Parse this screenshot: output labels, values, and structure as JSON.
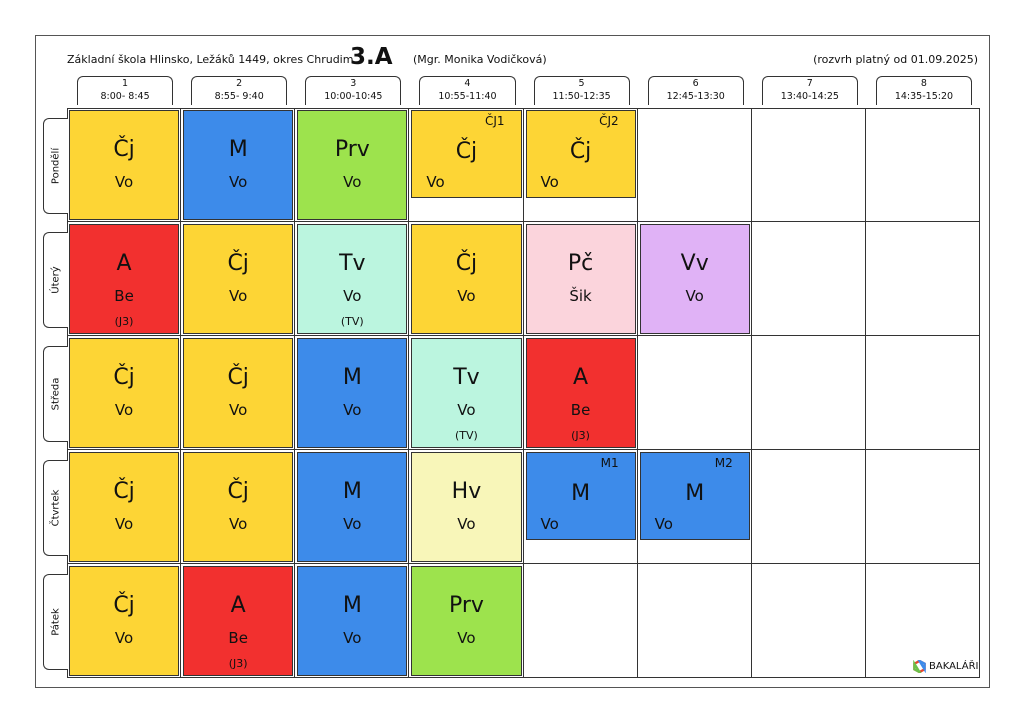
{
  "header": {
    "school": "Základní škola Hlinsko, Ležáků 1449, okres Chrudim",
    "class": "3.A",
    "teacher": "(Mgr. Monika Vodičková)",
    "validity": "(rozvrh platný od 01.09.2025)"
  },
  "periods": [
    {
      "number": "1",
      "time": "8:00- 8:45"
    },
    {
      "number": "2",
      "time": "8:55- 9:40"
    },
    {
      "number": "3",
      "time": "10:00-10:45"
    },
    {
      "number": "4",
      "time": "10:55-11:40"
    },
    {
      "number": "5",
      "time": "11:50-12:35"
    },
    {
      "number": "6",
      "time": "12:45-13:30"
    },
    {
      "number": "7",
      "time": "13:40-14:25"
    },
    {
      "number": "8",
      "time": "14:35-15:20"
    }
  ],
  "days": [
    {
      "name": "Pondělí",
      "lessons": [
        {
          "subject": "Čj",
          "teacher": "Vo",
          "color": "#fdd535"
        },
        {
          "subject": "M",
          "teacher": "Vo",
          "color": "#3d8bea"
        },
        {
          "subject": "Prv",
          "teacher": "Vo",
          "color": "#9de34d"
        },
        {
          "subject": "Čj",
          "teacher": "Vo",
          "group": "ČJ1",
          "color": "#fdd535"
        },
        {
          "subject": "Čj",
          "teacher": "Vo",
          "group": "ČJ2",
          "color": "#fdd535"
        },
        null,
        null,
        null
      ]
    },
    {
      "name": "Úterý",
      "lessons": [
        {
          "subject": "A",
          "teacher": "Be",
          "room": "(J3)",
          "color": "#f2302f"
        },
        {
          "subject": "Čj",
          "teacher": "Vo",
          "color": "#fdd535"
        },
        {
          "subject": "Tv",
          "teacher": "Vo",
          "room": "(TV)",
          "color": "#bbf5df"
        },
        {
          "subject": "Čj",
          "teacher": "Vo",
          "color": "#fdd535"
        },
        {
          "subject": "Pč",
          "teacher": "Šik",
          "color": "#fbd4dc"
        },
        {
          "subject": "Vv",
          "teacher": "Vo",
          "color": "#e0b2f6"
        },
        null,
        null
      ]
    },
    {
      "name": "Středa",
      "lessons": [
        {
          "subject": "Čj",
          "teacher": "Vo",
          "color": "#fdd535"
        },
        {
          "subject": "Čj",
          "teacher": "Vo",
          "color": "#fdd535"
        },
        {
          "subject": "M",
          "teacher": "Vo",
          "color": "#3d8bea"
        },
        {
          "subject": "Tv",
          "teacher": "Vo",
          "room": "(TV)",
          "color": "#bbf5df"
        },
        {
          "subject": "A",
          "teacher": "Be",
          "room": "(J3)",
          "color": "#f2302f"
        },
        null,
        null,
        null
      ]
    },
    {
      "name": "Čtvrtek",
      "lessons": [
        {
          "subject": "Čj",
          "teacher": "Vo",
          "color": "#fdd535"
        },
        {
          "subject": "Čj",
          "teacher": "Vo",
          "color": "#fdd535"
        },
        {
          "subject": "M",
          "teacher": "Vo",
          "color": "#3d8bea"
        },
        {
          "subject": "Hv",
          "teacher": "Vo",
          "color": "#f8f6b9"
        },
        {
          "subject": "M",
          "teacher": "Vo",
          "group": "M1",
          "color": "#3d8bea"
        },
        {
          "subject": "M",
          "teacher": "Vo",
          "group": "M2",
          "color": "#3d8bea"
        },
        null,
        null
      ]
    },
    {
      "name": "Pátek",
      "lessons": [
        {
          "subject": "Čj",
          "teacher": "Vo",
          "color": "#fdd535"
        },
        {
          "subject": "A",
          "teacher": "Be",
          "room": "(J3)",
          "color": "#f2302f"
        },
        {
          "subject": "M",
          "teacher": "Vo",
          "color": "#3d8bea"
        },
        {
          "subject": "Prv",
          "teacher": "Vo",
          "color": "#9de34d"
        },
        null,
        null,
        null,
        null
      ]
    }
  ],
  "footer": {
    "logo": "BAKALÁŘI"
  }
}
